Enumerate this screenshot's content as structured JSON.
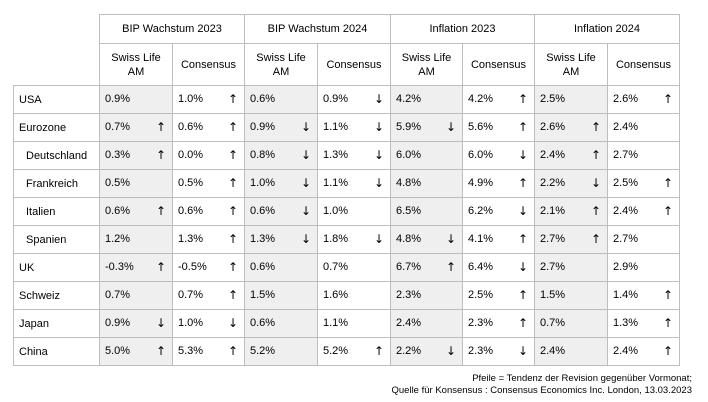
{
  "groups": [
    {
      "label": "BIP Wachstum 2023"
    },
    {
      "label": "BIP Wachstum 2024"
    },
    {
      "label": "Inflation 2023"
    },
    {
      "label": "Inflation 2024"
    }
  ],
  "subheaders": [
    {
      "line1": "Swiss Life",
      "line2": "AM"
    },
    {
      "line1": "Consensus",
      "line2": ""
    }
  ],
  "rows": [
    {
      "label": "USA",
      "indent": false,
      "cells": [
        {
          "v": "0.9%",
          "a": ""
        },
        {
          "v": "1.0%",
          "a": "↑"
        },
        {
          "v": "0.6%",
          "a": ""
        },
        {
          "v": "0.9%",
          "a": "↓"
        },
        {
          "v": "4.2%",
          "a": ""
        },
        {
          "v": "4.2%",
          "a": "↑"
        },
        {
          "v": "2.5%",
          "a": ""
        },
        {
          "v": "2.6%",
          "a": "↑"
        }
      ]
    },
    {
      "label": "Eurozone",
      "indent": false,
      "cells": [
        {
          "v": "0.7%",
          "a": "↑"
        },
        {
          "v": "0.6%",
          "a": "↑"
        },
        {
          "v": "0.9%",
          "a": "↓"
        },
        {
          "v": "1.1%",
          "a": "↓"
        },
        {
          "v": "5.9%",
          "a": "↓"
        },
        {
          "v": "5.6%",
          "a": "↑"
        },
        {
          "v": "2.6%",
          "a": "↑"
        },
        {
          "v": "2.4%",
          "a": ""
        }
      ]
    },
    {
      "label": "Deutschland",
      "indent": true,
      "cells": [
        {
          "v": "0.3%",
          "a": "↑"
        },
        {
          "v": "0.0%",
          "a": "↑"
        },
        {
          "v": "0.8%",
          "a": "↓"
        },
        {
          "v": "1.3%",
          "a": "↓"
        },
        {
          "v": "6.0%",
          "a": ""
        },
        {
          "v": "6.0%",
          "a": "↓"
        },
        {
          "v": "2.4%",
          "a": "↑"
        },
        {
          "v": "2.7%",
          "a": ""
        }
      ]
    },
    {
      "label": "Frankreich",
      "indent": true,
      "cells": [
        {
          "v": "0.5%",
          "a": ""
        },
        {
          "v": "0.5%",
          "a": "↑"
        },
        {
          "v": "1.0%",
          "a": "↓"
        },
        {
          "v": "1.1%",
          "a": "↓"
        },
        {
          "v": "4.8%",
          "a": ""
        },
        {
          "v": "4.9%",
          "a": "↑"
        },
        {
          "v": "2.2%",
          "a": "↓"
        },
        {
          "v": "2.5%",
          "a": "↑"
        }
      ]
    },
    {
      "label": "Italien",
      "indent": true,
      "cells": [
        {
          "v": "0.6%",
          "a": "↑"
        },
        {
          "v": "0.6%",
          "a": "↑"
        },
        {
          "v": "0.6%",
          "a": "↓"
        },
        {
          "v": "1.0%",
          "a": ""
        },
        {
          "v": "6.5%",
          "a": ""
        },
        {
          "v": "6.2%",
          "a": "↓"
        },
        {
          "v": "2.1%",
          "a": "↑"
        },
        {
          "v": "2.4%",
          "a": "↑"
        }
      ]
    },
    {
      "label": "Spanien",
      "indent": true,
      "cells": [
        {
          "v": "1.2%",
          "a": ""
        },
        {
          "v": "1.3%",
          "a": "↑"
        },
        {
          "v": "1.3%",
          "a": "↓"
        },
        {
          "v": "1.8%",
          "a": "↓"
        },
        {
          "v": "4.8%",
          "a": "↓"
        },
        {
          "v": "4.1%",
          "a": "↑"
        },
        {
          "v": "2.7%",
          "a": "↑"
        },
        {
          "v": "2.7%",
          "a": ""
        }
      ]
    },
    {
      "label": "UK",
      "indent": false,
      "cells": [
        {
          "v": "-0.3%",
          "a": "↑"
        },
        {
          "v": "-0.5%",
          "a": "↑"
        },
        {
          "v": "0.6%",
          "a": ""
        },
        {
          "v": "0.7%",
          "a": ""
        },
        {
          "v": "6.7%",
          "a": "↑"
        },
        {
          "v": "6.4%",
          "a": "↓"
        },
        {
          "v": "2.7%",
          "a": ""
        },
        {
          "v": "2.9%",
          "a": ""
        }
      ]
    },
    {
      "label": "Schweiz",
      "indent": false,
      "cells": [
        {
          "v": "0.7%",
          "a": ""
        },
        {
          "v": "0.7%",
          "a": "↑"
        },
        {
          "v": "1.5%",
          "a": ""
        },
        {
          "v": "1.6%",
          "a": ""
        },
        {
          "v": "2.3%",
          "a": ""
        },
        {
          "v": "2.5%",
          "a": "↑"
        },
        {
          "v": "1.5%",
          "a": ""
        },
        {
          "v": "1.4%",
          "a": "↑"
        }
      ]
    },
    {
      "label": "Japan",
      "indent": false,
      "cells": [
        {
          "v": "0.9%",
          "a": "↓"
        },
        {
          "v": "1.0%",
          "a": "↓"
        },
        {
          "v": "0.6%",
          "a": ""
        },
        {
          "v": "1.1%",
          "a": ""
        },
        {
          "v": "2.4%",
          "a": ""
        },
        {
          "v": "2.3%",
          "a": "↑"
        },
        {
          "v": "0.7%",
          "a": ""
        },
        {
          "v": "1.3%",
          "a": "↑"
        }
      ]
    },
    {
      "label": "China",
      "indent": false,
      "cells": [
        {
          "v": "5.0%",
          "a": "↑"
        },
        {
          "v": "5.3%",
          "a": "↑"
        },
        {
          "v": "5.2%",
          "a": ""
        },
        {
          "v": "5.2%",
          "a": "↑"
        },
        {
          "v": "2.2%",
          "a": "↓"
        },
        {
          "v": "2.3%",
          "a": "↓"
        },
        {
          "v": "2.4%",
          "a": ""
        },
        {
          "v": "2.4%",
          "a": "↑"
        }
      ]
    }
  ],
  "notes": {
    "line1": "Pfeile = Tendenz der Revision gegenüber Vormonat;",
    "line2": "Quelle für Konsensus : Consensus Economics Inc. London, 13.03.2023"
  },
  "colors": {
    "swiss_life_fill": "#efefef",
    "border": "#bdbdbd"
  }
}
